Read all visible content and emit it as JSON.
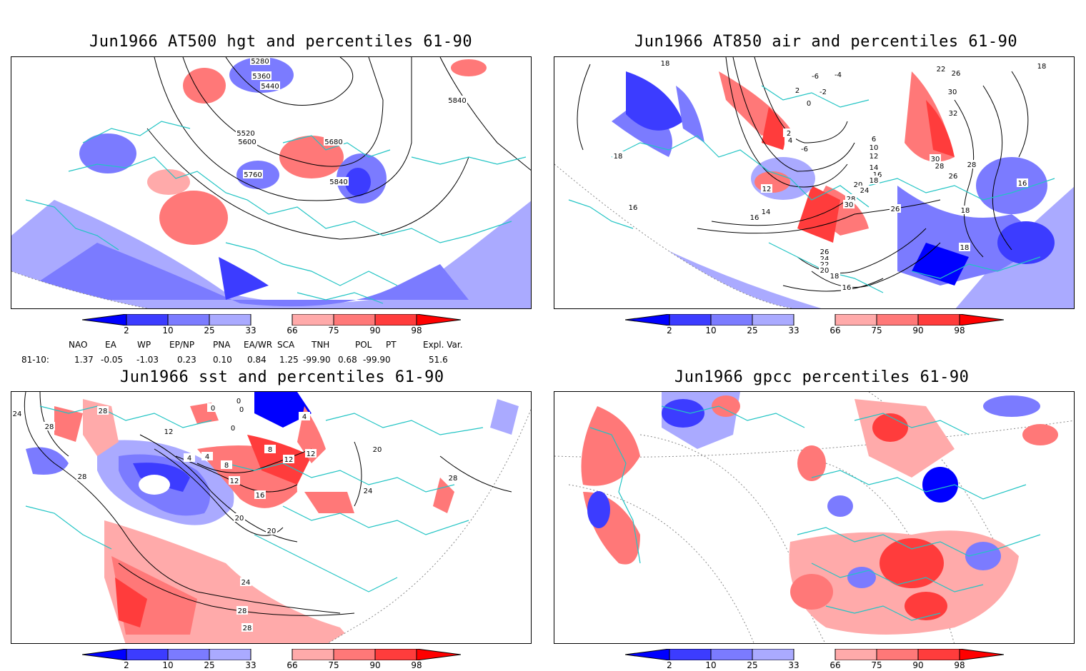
{
  "panels": [
    {
      "id": "tl",
      "title": "Jun1966 AT500 hgt and percentiles 61-90",
      "contour_labels": [
        "5280",
        "5360",
        "5440",
        "5520",
        "5600",
        "5680",
        "5760",
        "5840",
        "5840"
      ]
    },
    {
      "id": "tr",
      "title": "Jun1966 AT850 air and percentiles 61-90",
      "contour_labels": [
        "18",
        "-6",
        "-4",
        "2",
        "-2",
        "0",
        "2",
        "4",
        "-6",
        "6",
        "10",
        "12",
        "14",
        "16",
        "18",
        "20",
        "24",
        "28",
        "30",
        "26",
        "22",
        "26",
        "30",
        "32",
        "30",
        "28",
        "26",
        "28",
        "18",
        "16",
        "18",
        "16",
        "12",
        "14",
        "16",
        "18",
        "26",
        "24",
        "22",
        "20",
        "18",
        "16",
        "18"
      ]
    },
    {
      "id": "bl",
      "title": "Jun1966 sst and percentiles 61-90",
      "contour_labels": [
        "24",
        "28",
        "28",
        "12",
        "0",
        "0",
        "0",
        "0",
        "4",
        "4",
        "8",
        "8",
        "12",
        "12",
        "12",
        "4",
        "16",
        "20",
        "20",
        "28",
        "24",
        "20",
        "28",
        "24",
        "28",
        "28"
      ]
    },
    {
      "id": "br",
      "title": "Jun1966 gpcc percentiles 61-90",
      "contour_labels": []
    }
  ],
  "colorbar": {
    "labels": [
      "2",
      "10",
      "25",
      "33",
      "66",
      "75",
      "90",
      "98"
    ],
    "colors": {
      "blue_dark": "#0000ff",
      "blue_mid": "#3c3cff",
      "blue_light": "#7b7bff",
      "blue_pale": "#aaaaff",
      "red_pale": "#ffaaaa",
      "red_light": "#ff7878",
      "red_mid": "#ff3c3c",
      "red_dark": "#ff0000"
    }
  },
  "indices": {
    "headers": [
      "NAO",
      "EA",
      "WP",
      "EP/NP",
      "PNA",
      "EA/WR",
      "SCA",
      "TNH",
      "POL",
      "PT",
      "Expl. Var."
    ],
    "row_label": "81-10:",
    "values": [
      "1.37",
      "-0.05",
      "-1.03",
      "0.23",
      "0.10",
      "0.84",
      "1.25",
      "-99.90",
      "0.68",
      "-99.90",
      "51.6"
    ]
  }
}
